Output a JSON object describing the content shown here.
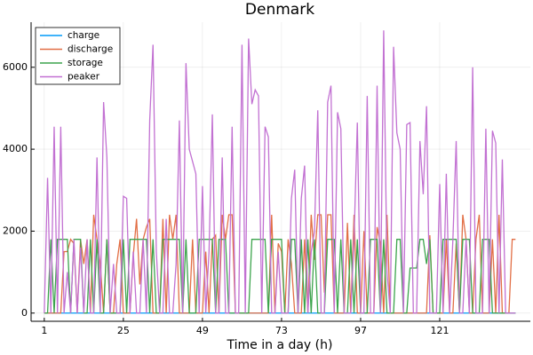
{
  "chart_data": {
    "type": "line",
    "title": "Denmark",
    "xlabel": "Time in a day (h)",
    "x": [
      1,
      2,
      3,
      4,
      5,
      6,
      7,
      8,
      9,
      10,
      11,
      12,
      13,
      14,
      15,
      16,
      17,
      18,
      19,
      20,
      21,
      22,
      23,
      24,
      25,
      26,
      27,
      28,
      29,
      30,
      31,
      32,
      33,
      34,
      35,
      36,
      37,
      38,
      39,
      40,
      41,
      42,
      43,
      44,
      45,
      46,
      47,
      48,
      49,
      50,
      51,
      52,
      53,
      54,
      55,
      56,
      57,
      58,
      59,
      60,
      61,
      62,
      63,
      64,
      65,
      66,
      67,
      68,
      69,
      70,
      71,
      72,
      73,
      74,
      75,
      76,
      77,
      78,
      79,
      80,
      81,
      82,
      83,
      84,
      85,
      86,
      87,
      88,
      89,
      90,
      91,
      92,
      93,
      94,
      95,
      96,
      97,
      98,
      99,
      100,
      101,
      102,
      103,
      104,
      105,
      106,
      107,
      108,
      109,
      110,
      111,
      112,
      113,
      114,
      115,
      116,
      117,
      118,
      119,
      120,
      121,
      122,
      123,
      124,
      125,
      126,
      127,
      128,
      129,
      130,
      131,
      132,
      133,
      134,
      135,
      136,
      137,
      138,
      139,
      140,
      141,
      142,
      143,
      144
    ],
    "series": [
      {
        "name": "charge",
        "color": "#009af9",
        "values": [
          0,
          0,
          0,
          0,
          0,
          0,
          0,
          0,
          0,
          0,
          0,
          0,
          0,
          0,
          0,
          0,
          0,
          0,
          0,
          0,
          0,
          0,
          0,
          0,
          0,
          0,
          0,
          0,
          0,
          0,
          0,
          0,
          0,
          0,
          0,
          0,
          0,
          0,
          0,
          0,
          0,
          0,
          0,
          0,
          0,
          0,
          0,
          0,
          0,
          0,
          0,
          0,
          0,
          0,
          0,
          0,
          0,
          0,
          0,
          0,
          0,
          0,
          0,
          0,
          0,
          0,
          0,
          0,
          0,
          0,
          0,
          0,
          0,
          0,
          0,
          0,
          0,
          0,
          0,
          0,
          0,
          0,
          0,
          0,
          0,
          0,
          0,
          0,
          0,
          0,
          0,
          0,
          0,
          0,
          0,
          0,
          0,
          0,
          0,
          0,
          0,
          0,
          0,
          0,
          0,
          0,
          0,
          0,
          0,
          0,
          0,
          0,
          0,
          0,
          0,
          0,
          0,
          0,
          0,
          0,
          0,
          0,
          0,
          0,
          0,
          0,
          0,
          0,
          0,
          0,
          0,
          0,
          0,
          0,
          0,
          0,
          0,
          0,
          0,
          0,
          0,
          0,
          0,
          0
        ]
      },
      {
        "name": "discharge",
        "color": "#e26f46",
        "values": [
          0,
          0,
          0,
          0,
          0,
          0,
          1500,
          1500,
          1800,
          1700,
          0,
          1800,
          1200,
          1800,
          0,
          2400,
          1800,
          1200,
          0,
          1800,
          0,
          0,
          1200,
          1800,
          0,
          0,
          0,
          1400,
          2300,
          700,
          1800,
          2100,
          2300,
          0,
          0,
          0,
          2300,
          0,
          2400,
          1800,
          2400,
          0,
          0,
          0,
          0,
          1800,
          0,
          0,
          0,
          1500,
          0,
          1800,
          1900,
          0,
          2400,
          1800,
          2400,
          2400,
          0,
          0,
          0,
          0,
          0,
          0,
          0,
          0,
          0,
          0,
          0,
          2400,
          0,
          1700,
          1500,
          0,
          1800,
          1200,
          0,
          0,
          0,
          1800,
          0,
          2400,
          1300,
          2400,
          2400,
          500,
          2400,
          2400,
          0,
          0,
          0,
          0,
          2200,
          0,
          2400,
          0,
          0,
          2000,
          0,
          0,
          0,
          2100,
          1700,
          0,
          2400,
          0,
          0,
          0,
          0,
          0,
          0,
          0,
          0,
          0,
          0,
          0,
          0,
          1900,
          0,
          0,
          0,
          0,
          1800,
          0,
          0,
          1700,
          0,
          2400,
          1800,
          0,
          0,
          1800,
          2400,
          0,
          0,
          0,
          1800,
          0,
          2400,
          0,
          0,
          0,
          1800,
          1800
        ]
      },
      {
        "name": "storage",
        "color": "#3da44d",
        "values": [
          0,
          0,
          1800,
          0,
          1800,
          1800,
          1800,
          1800,
          0,
          1800,
          1800,
          1800,
          0,
          0,
          1800,
          0,
          1800,
          0,
          0,
          1800,
          0,
          0,
          0,
          0,
          1800,
          0,
          1800,
          1800,
          1800,
          1800,
          1800,
          1800,
          0,
          1800,
          0,
          0,
          1800,
          1800,
          1800,
          1800,
          1800,
          1800,
          0,
          1800,
          0,
          0,
          0,
          1800,
          1800,
          1800,
          1800,
          1800,
          0,
          1800,
          1800,
          1800,
          0,
          0,
          0,
          0,
          0,
          0,
          0,
          1800,
          1800,
          1800,
          1800,
          1800,
          0,
          1800,
          1800,
          1800,
          1800,
          0,
          0,
          1800,
          1800,
          0,
          1800,
          0,
          1800,
          0,
          1800,
          0,
          0,
          0,
          1800,
          1800,
          1800,
          0,
          1800,
          0,
          0,
          1800,
          0,
          1800,
          0,
          0,
          0,
          1800,
          1800,
          1800,
          0,
          1800,
          0,
          0,
          0,
          1800,
          1800,
          0,
          0,
          1100,
          1100,
          1100,
          1800,
          1800,
          1200,
          1800,
          0,
          0,
          0,
          1800,
          1800,
          1800,
          1800,
          1800,
          0,
          1800,
          1800,
          1800,
          0,
          0,
          0,
          1800,
          1800,
          1800,
          0,
          0,
          0,
          0,
          0,
          0,
          0,
          0
        ]
      },
      {
        "name": "peaker",
        "color": "#c271d2",
        "values": [
          0,
          3300,
          0,
          4550,
          0,
          4550,
          0,
          1000,
          0,
          1800,
          0,
          1600,
          0,
          1800,
          0,
          0,
          3800,
          0,
          5150,
          3800,
          0,
          1200,
          0,
          0,
          2850,
          2800,
          0,
          1500,
          0,
          0,
          1800,
          0,
          4700,
          6550,
          1500,
          0,
          0,
          2300,
          0,
          0,
          1200,
          4700,
          0,
          6100,
          4000,
          3700,
          3400,
          0,
          3100,
          0,
          1500,
          4850,
          0,
          0,
          3800,
          0,
          0,
          4550,
          0,
          0,
          6550,
          0,
          6700,
          5100,
          5450,
          5300,
          0,
          4550,
          4300,
          0,
          0,
          1500,
          0,
          0,
          0,
          2800,
          3500,
          0,
          2800,
          3600,
          0,
          1500,
          2000,
          4950,
          0,
          0,
          5150,
          5550,
          0,
          4900,
          4500,
          0,
          0,
          0,
          1800,
          4650,
          0,
          0,
          5300,
          0,
          0,
          5550,
          0,
          6900,
          1000,
          0,
          6500,
          4400,
          4000,
          0,
          4600,
          4650,
          0,
          0,
          4200,
          2900,
          5050,
          0,
          0,
          0,
          3150,
          0,
          3400,
          0,
          1800,
          4200,
          0,
          0,
          1800,
          0,
          6000,
          0,
          0,
          0,
          4500,
          0,
          4450,
          4150,
          0,
          3750,
          0,
          0,
          0,
          0
        ]
      }
    ],
    "xlim": [
      -3,
      148.5
    ],
    "xticks": [
      1,
      25,
      49,
      73,
      97,
      121
    ],
    "ylim": [
      -200,
      7100
    ],
    "yticks": [
      0,
      2000,
      4000,
      6000
    ],
    "grid": true,
    "legend": "top-left"
  }
}
